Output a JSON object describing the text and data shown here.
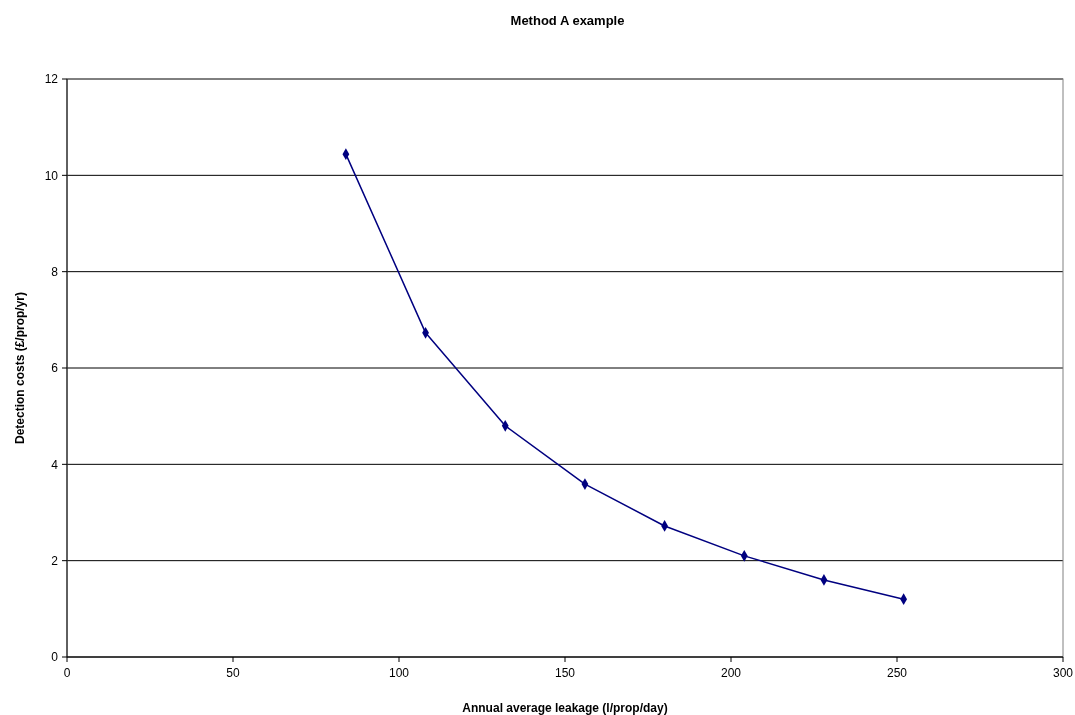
{
  "chart_data": {
    "type": "line",
    "title": "Method A example",
    "xlabel": "Annual average leakage (l/prop/day)",
    "ylabel": "Detection costs (£/prop/yr)",
    "x": [
      84,
      108,
      132,
      156,
      180,
      204,
      228,
      252
    ],
    "series": [
      {
        "color": "#000080",
        "values": [
          10.44,
          6.73,
          4.8,
          3.59,
          2.72,
          2.1,
          1.6,
          1.2
        ]
      }
    ],
    "xlim": [
      0,
      300
    ],
    "xticks": [
      0,
      50,
      100,
      150,
      200,
      250,
      300
    ],
    "ylim": [
      0,
      12
    ],
    "yticks": [
      0,
      2,
      4,
      6,
      8,
      10,
      12
    ],
    "grid": "y",
    "marker": "diamond",
    "line_style": "solid"
  }
}
